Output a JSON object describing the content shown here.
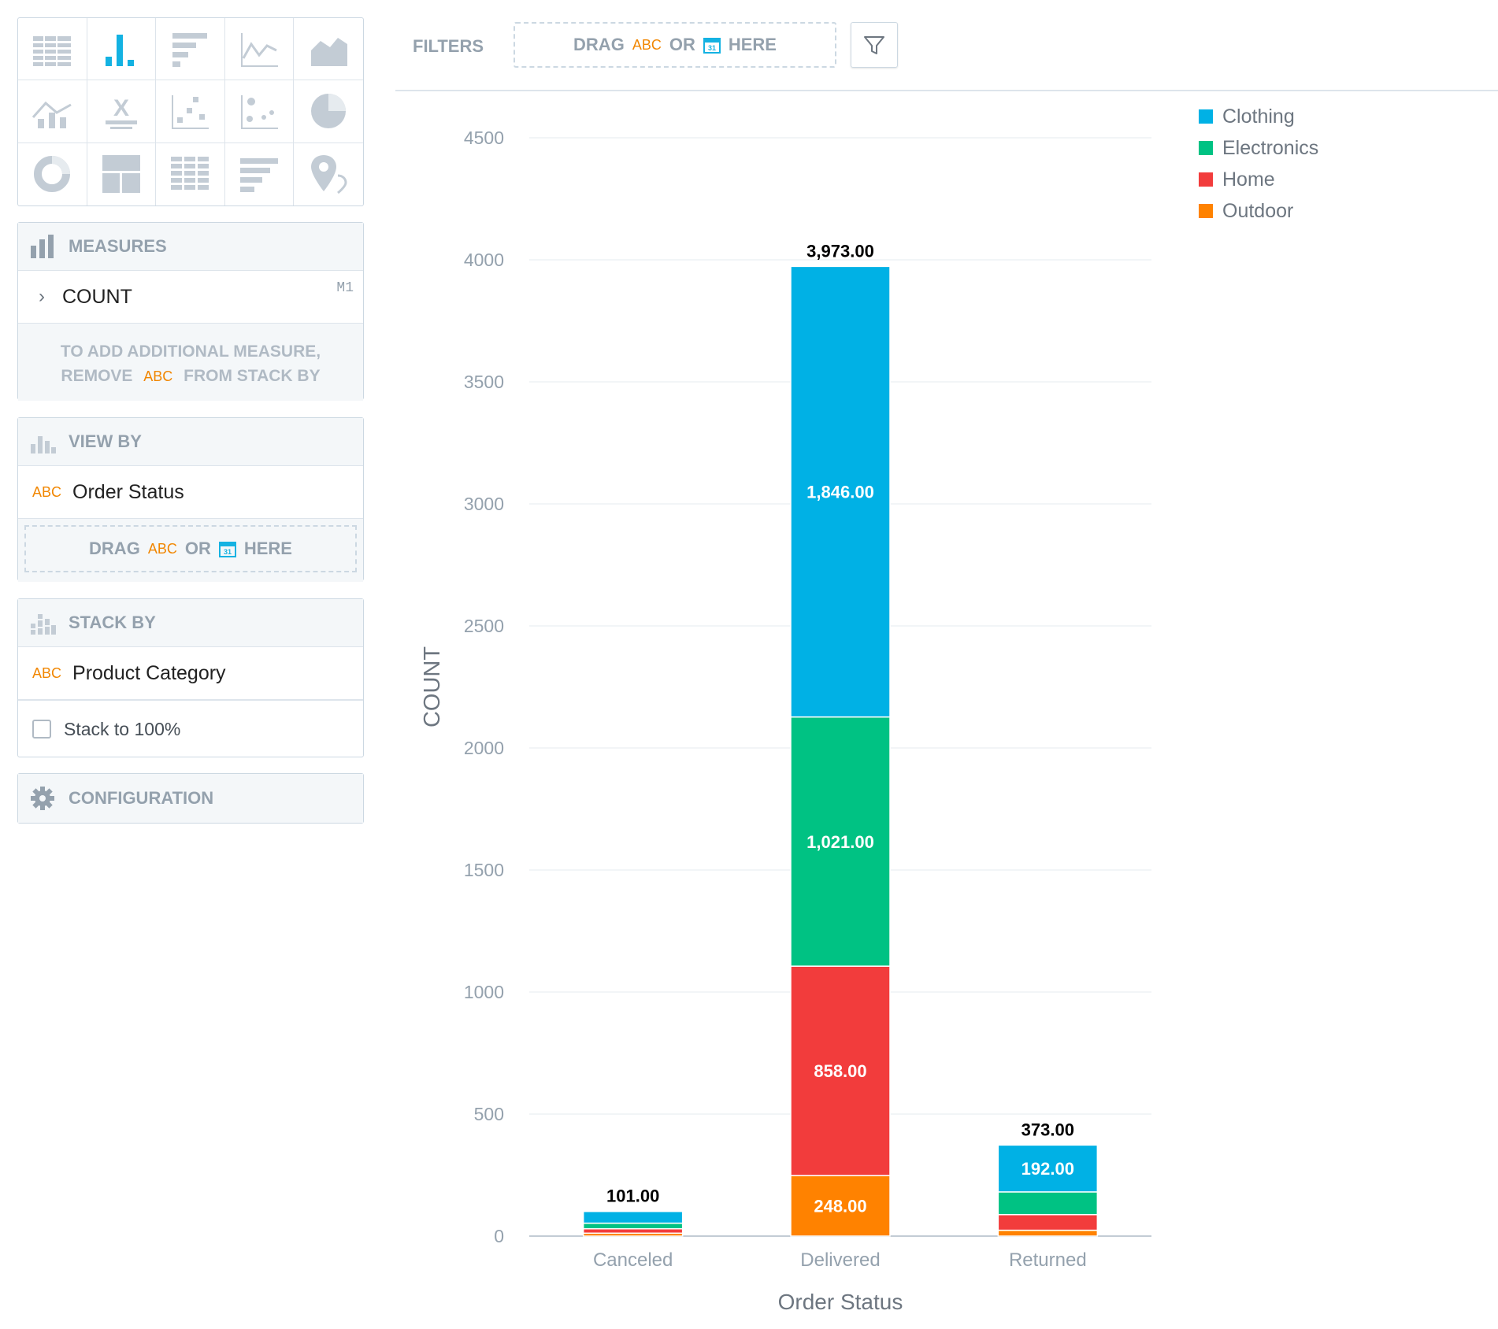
{
  "filters": {
    "label": "FILTERS",
    "drag_text": "DRAG",
    "abc": "ABC",
    "or": "OR",
    "here": "HERE"
  },
  "chart_types": [
    "table-icon",
    "column-chart-icon",
    "bar-chart-icon",
    "line-chart-icon",
    "area-chart-icon",
    "combo-chart-icon",
    "headline-icon",
    "scatter-plot-icon",
    "bubble-chart-icon",
    "pie-chart-icon",
    "donut-chart-icon",
    "treemap-icon",
    "heatmap-icon",
    "bullet-chart-icon",
    "geo-chart-icon"
  ],
  "measures": {
    "header": "MEASURES",
    "item": "COUNT",
    "item_badge": "M1",
    "hint_line1": "TO ADD ADDITIONAL MEASURE,",
    "hint_remove": "REMOVE",
    "hint_abc": "ABC",
    "hint_rest": "FROM STACK BY"
  },
  "view_by": {
    "header": "VIEW BY",
    "abc": "ABC",
    "item": "Order Status",
    "drag": "DRAG",
    "or": "OR",
    "here": "HERE"
  },
  "stack_by": {
    "header": "STACK BY",
    "abc": "ABC",
    "item": "Product Category",
    "checkbox_label": "Stack to 100%"
  },
  "configuration": {
    "header": "CONFIGURATION"
  },
  "colors": {
    "Clothing": "#00b1e5",
    "Electronics": "#00c283",
    "Home": "#f23c3c",
    "Outdoor": "#ff8200"
  },
  "chart_data": {
    "type": "bar",
    "stacked": true,
    "categories": [
      "Canceled",
      "Delivered",
      "Returned"
    ],
    "series": [
      {
        "name": "Outdoor",
        "values": [
          12,
          248,
          24
        ]
      },
      {
        "name": "Home",
        "values": [
          18,
          858,
          64
        ]
      },
      {
        "name": "Electronics",
        "values": [
          23,
          1021,
          93
        ]
      },
      {
        "name": "Clothing",
        "values": [
          48,
          1846,
          192
        ]
      }
    ],
    "totals": [
      "101.00",
      "3,973.00",
      "373.00"
    ],
    "segment_labels": {
      "Delivered": {
        "Clothing": "1,846.00",
        "Electronics": "1,021.00",
        "Home": "858.00",
        "Outdoor": "248.00"
      },
      "Returned": {
        "Clothing": "192.00"
      }
    },
    "xlabel": "Order Status",
    "ylabel": "COUNT",
    "ylim": [
      0,
      4500
    ],
    "yticks": [
      0,
      500,
      1000,
      1500,
      2000,
      2500,
      3000,
      3500,
      4000,
      4500
    ],
    "legend": [
      "Clothing",
      "Electronics",
      "Home",
      "Outdoor"
    ],
    "legend_position": "top-right",
    "grid": true
  }
}
